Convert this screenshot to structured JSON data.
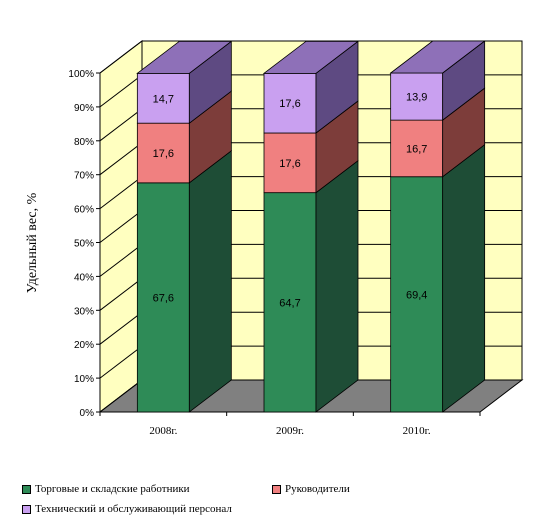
{
  "chart_data": {
    "type": "bar",
    "stacked": true,
    "three_d": true,
    "percent_axis": true,
    "ylabel": "Удельный вес, %",
    "categories": [
      "2008г.",
      "2009г.",
      "2010г."
    ],
    "y_ticks": [
      "0%",
      "10%",
      "20%",
      "30%",
      "40%",
      "50%",
      "60%",
      "70%",
      "80%",
      "90%",
      "100%"
    ],
    "ylim": [
      0,
      100
    ],
    "grid": false,
    "legend_position": "bottom",
    "series": [
      {
        "name": "Торговые и складские работники",
        "values": [
          67.6,
          64.7,
          69.4
        ],
        "labels": [
          "67,6",
          "64,7",
          "69,4"
        ],
        "color": "#2e8b57",
        "side": "#1e4d36",
        "top": "#2a7a4e"
      },
      {
        "name": "Руководители",
        "values": [
          17.6,
          17.6,
          16.7
        ],
        "labels": [
          "17,6",
          "17,6",
          "16,7"
        ],
        "color": "#f08080",
        "side": "#7d3d3a",
        "top": "#b35a55"
      },
      {
        "name": "Технический и обслуживающий персонал",
        "values": [
          14.7,
          17.6,
          13.9
        ],
        "labels": [
          "14,7",
          "17,6",
          "13,9"
        ],
        "color": "#c9a0f0",
        "side": "#5e4a82",
        "top": "#8e70b8"
      }
    ],
    "colors": {
      "wall": "#ffffc0",
      "floor": "#808080"
    }
  }
}
